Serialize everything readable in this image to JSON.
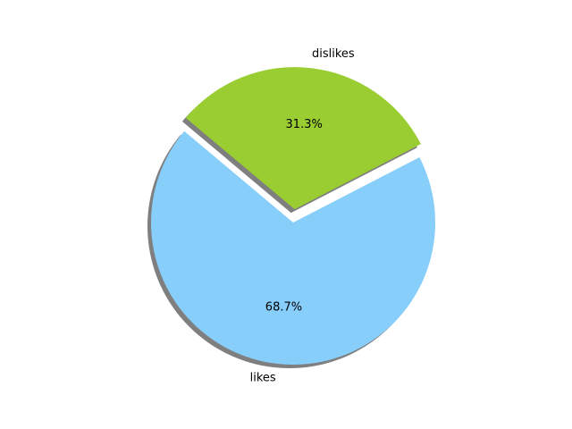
{
  "chart_data": {
    "type": "pie",
    "title": "",
    "slices": [
      {
        "label": "likes",
        "value": 68.7,
        "pct_label": "68.7%",
        "color": "#87CEFA",
        "explode": false
      },
      {
        "label": "dislikes",
        "value": 31.3,
        "pct_label": "31.3%",
        "color": "#9ACD32",
        "explode": true
      }
    ],
    "start_angle_deg": 140,
    "shadow": true,
    "legend": "none"
  }
}
